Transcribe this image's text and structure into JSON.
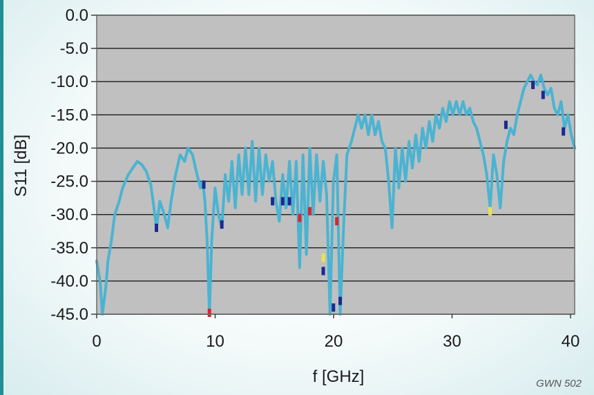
{
  "watermark": "GWN 502",
  "colors": {
    "plot_bg": "#c0c0c0",
    "grid": "#1a1a1a",
    "main_series": "#4bb3d2",
    "dip_dark": "#1b2a8f",
    "dip_red": "#d9262a",
    "dip_yellow": "#e8e44a"
  },
  "chart_data": {
    "type": "line",
    "title": "",
    "xlabel": "f [GHz]",
    "ylabel": "S11 [dB]",
    "xlim": [
      0,
      40
    ],
    "ylim": [
      -45,
      0
    ],
    "xticks": [
      0,
      10,
      20,
      30,
      40
    ],
    "xtick_labels": [
      "0",
      "10",
      "20",
      "30",
      "40"
    ],
    "yticks": [
      0,
      -5,
      -10,
      -15,
      -20,
      -25,
      -30,
      -35,
      -40,
      -45
    ],
    "ytick_labels": [
      "0.0",
      "-5.0",
      "-10.0",
      "-15.0",
      "-20.0",
      "-25.0",
      "-30.0",
      "-35.0",
      "-40.0",
      "-45.0"
    ],
    "grid": "horizontal",
    "series": [
      {
        "values": [
          [
            0,
            -37
          ],
          [
            0.3,
            -40
          ],
          [
            0.5,
            -45
          ],
          [
            0.8,
            -41
          ],
          [
            1.0,
            -37
          ],
          [
            1.3,
            -34
          ],
          [
            1.6,
            -30
          ],
          [
            2.0,
            -28
          ],
          [
            2.3,
            -26
          ],
          [
            2.8,
            -24
          ],
          [
            3.2,
            -23
          ],
          [
            3.6,
            -22
          ],
          [
            4.0,
            -22.5
          ],
          [
            4.4,
            -23.5
          ],
          [
            4.8,
            -25.5
          ],
          [
            5.0,
            -28
          ],
          [
            5.3,
            -32
          ],
          [
            5.6,
            -28
          ],
          [
            6.0,
            -30
          ],
          [
            6.3,
            -32
          ],
          [
            6.6,
            -28
          ],
          [
            7.0,
            -24
          ],
          [
            7.4,
            -21
          ],
          [
            7.8,
            -22
          ],
          [
            8.1,
            -20
          ],
          [
            8.5,
            -21
          ],
          [
            8.9,
            -24
          ],
          [
            9.2,
            -26
          ],
          [
            9.4,
            -25
          ],
          [
            9.6,
            -28
          ],
          [
            9.8,
            -34
          ],
          [
            10.0,
            -45
          ],
          [
            10.2,
            -34
          ],
          [
            10.5,
            -26
          ],
          [
            10.8,
            -30
          ],
          [
            11.1,
            -32
          ],
          [
            11.4,
            -24
          ],
          [
            11.7,
            -28
          ],
          [
            12.0,
            -22
          ],
          [
            12.3,
            -29
          ],
          [
            12.6,
            -21
          ],
          [
            12.9,
            -27
          ],
          [
            13.2,
            -20
          ],
          [
            13.5,
            -27
          ],
          [
            13.8,
            -19
          ],
          [
            14.1,
            -28
          ],
          [
            14.4,
            -20
          ],
          [
            14.7,
            -27
          ],
          [
            15.0,
            -21
          ],
          [
            15.3,
            -25
          ],
          [
            15.6,
            -22
          ],
          [
            15.9,
            -28
          ],
          [
            16.2,
            -31
          ],
          [
            16.5,
            -24
          ],
          [
            16.8,
            -29
          ],
          [
            17.1,
            -22
          ],
          [
            17.4,
            -30
          ],
          [
            17.7,
            -22
          ],
          [
            18.0,
            -38
          ],
          [
            18.3,
            -21
          ],
          [
            18.6,
            -36
          ],
          [
            18.9,
            -20
          ],
          [
            19.2,
            -30
          ],
          [
            19.5,
            -21
          ],
          [
            19.8,
            -28
          ],
          [
            20.1,
            -22
          ],
          [
            20.4,
            -27
          ],
          [
            20.7,
            -45
          ],
          [
            21.0,
            -25
          ],
          [
            21.3,
            -21
          ],
          [
            21.6,
            -45
          ],
          [
            21.9,
            -32
          ],
          [
            22.2,
            -21
          ],
          [
            22.6,
            -19
          ],
          [
            22.9,
            -17
          ],
          [
            23.2,
            -15
          ],
          [
            23.5,
            -17
          ],
          [
            23.8,
            -15
          ],
          [
            24.1,
            -18
          ],
          [
            24.4,
            -15
          ],
          [
            24.7,
            -18
          ],
          [
            25.0,
            -16
          ],
          [
            25.3,
            -19
          ],
          [
            25.6,
            -20
          ],
          [
            25.9,
            -25
          ],
          [
            26.2,
            -32
          ],
          [
            26.5,
            -20
          ],
          [
            26.8,
            -26
          ],
          [
            27.1,
            -20
          ],
          [
            27.4,
            -25
          ],
          [
            27.7,
            -19
          ],
          [
            28.0,
            -23
          ],
          [
            28.3,
            -18
          ],
          [
            28.6,
            -22
          ],
          [
            28.9,
            -17
          ],
          [
            29.2,
            -20
          ],
          [
            29.5,
            -16
          ],
          [
            29.8,
            -19
          ],
          [
            30.1,
            -15
          ],
          [
            30.4,
            -17
          ],
          [
            30.7,
            -14
          ],
          [
            31.0,
            -16
          ],
          [
            31.3,
            -13
          ],
          [
            31.6,
            -15
          ],
          [
            31.9,
            -13
          ],
          [
            32.2,
            -15
          ],
          [
            32.5,
            -13
          ],
          [
            32.8,
            -15
          ],
          [
            33.1,
            -14
          ],
          [
            33.4,
            -16
          ],
          [
            33.7,
            -17
          ],
          [
            34.0,
            -19
          ],
          [
            34.3,
            -21
          ],
          [
            34.6,
            -24
          ],
          [
            34.9,
            -29
          ],
          [
            35.2,
            -21
          ],
          [
            35.5,
            -24
          ],
          [
            35.8,
            -29
          ],
          [
            36.1,
            -22
          ],
          [
            36.4,
            -19
          ],
          [
            36.7,
            -17
          ],
          [
            37.0,
            -18
          ],
          [
            37.3,
            -15
          ],
          [
            37.6,
            -13
          ],
          [
            37.9,
            -11
          ],
          [
            38.2,
            -10
          ],
          [
            38.5,
            -9
          ],
          [
            38.8,
            -10
          ],
          [
            39.1,
            -10.5
          ],
          [
            39.4,
            -9
          ],
          [
            39.7,
            -11
          ],
          [
            40.0,
            -12
          ],
          [
            40.3,
            -11
          ],
          [
            40.6,
            -14
          ],
          [
            40.9,
            -15
          ],
          [
            41.2,
            -13
          ],
          [
            41.5,
            -17
          ],
          [
            41.8,
            -15
          ],
          [
            42.1,
            -18
          ],
          [
            42.4,
            -20
          ]
        ]
      }
    ],
    "dip_markers": [
      {
        "x": 5.3,
        "y": -32,
        "color": "dip_dark"
      },
      {
        "x": 9.5,
        "y": -25.5,
        "color": "dip_dark"
      },
      {
        "x": 11.1,
        "y": -31.5,
        "color": "dip_dark"
      },
      {
        "x": 15.6,
        "y": -28,
        "color": "dip_dark"
      },
      {
        "x": 16.5,
        "y": -28,
        "color": "dip_dark"
      },
      {
        "x": 17.1,
        "y": -28,
        "color": "dip_dark"
      },
      {
        "x": 18.0,
        "y": -30.5,
        "color": "dip_red"
      },
      {
        "x": 18.9,
        "y": -29.5,
        "color": "dip_red"
      },
      {
        "x": 20.1,
        "y": -36.5,
        "color": "dip_yellow"
      },
      {
        "x": 20.1,
        "y": -38.5,
        "color": "dip_dark"
      },
      {
        "x": 21.3,
        "y": -31,
        "color": "dip_red"
      },
      {
        "x": 21.0,
        "y": -44,
        "color": "dip_dark"
      },
      {
        "x": 21.6,
        "y": -43,
        "color": "dip_dark"
      },
      {
        "x": 10.0,
        "y": -45,
        "color": "dip_red"
      },
      {
        "x": 34.9,
        "y": -29.5,
        "color": "dip_yellow"
      },
      {
        "x": 36.3,
        "y": -16.5,
        "color": "dip_dark"
      },
      {
        "x": 38.7,
        "y": -10.5,
        "color": "dip_dark"
      },
      {
        "x": 39.6,
        "y": -12,
        "color": "dip_dark"
      },
      {
        "x": 41.4,
        "y": -17.5,
        "color": "dip_dark"
      }
    ]
  }
}
